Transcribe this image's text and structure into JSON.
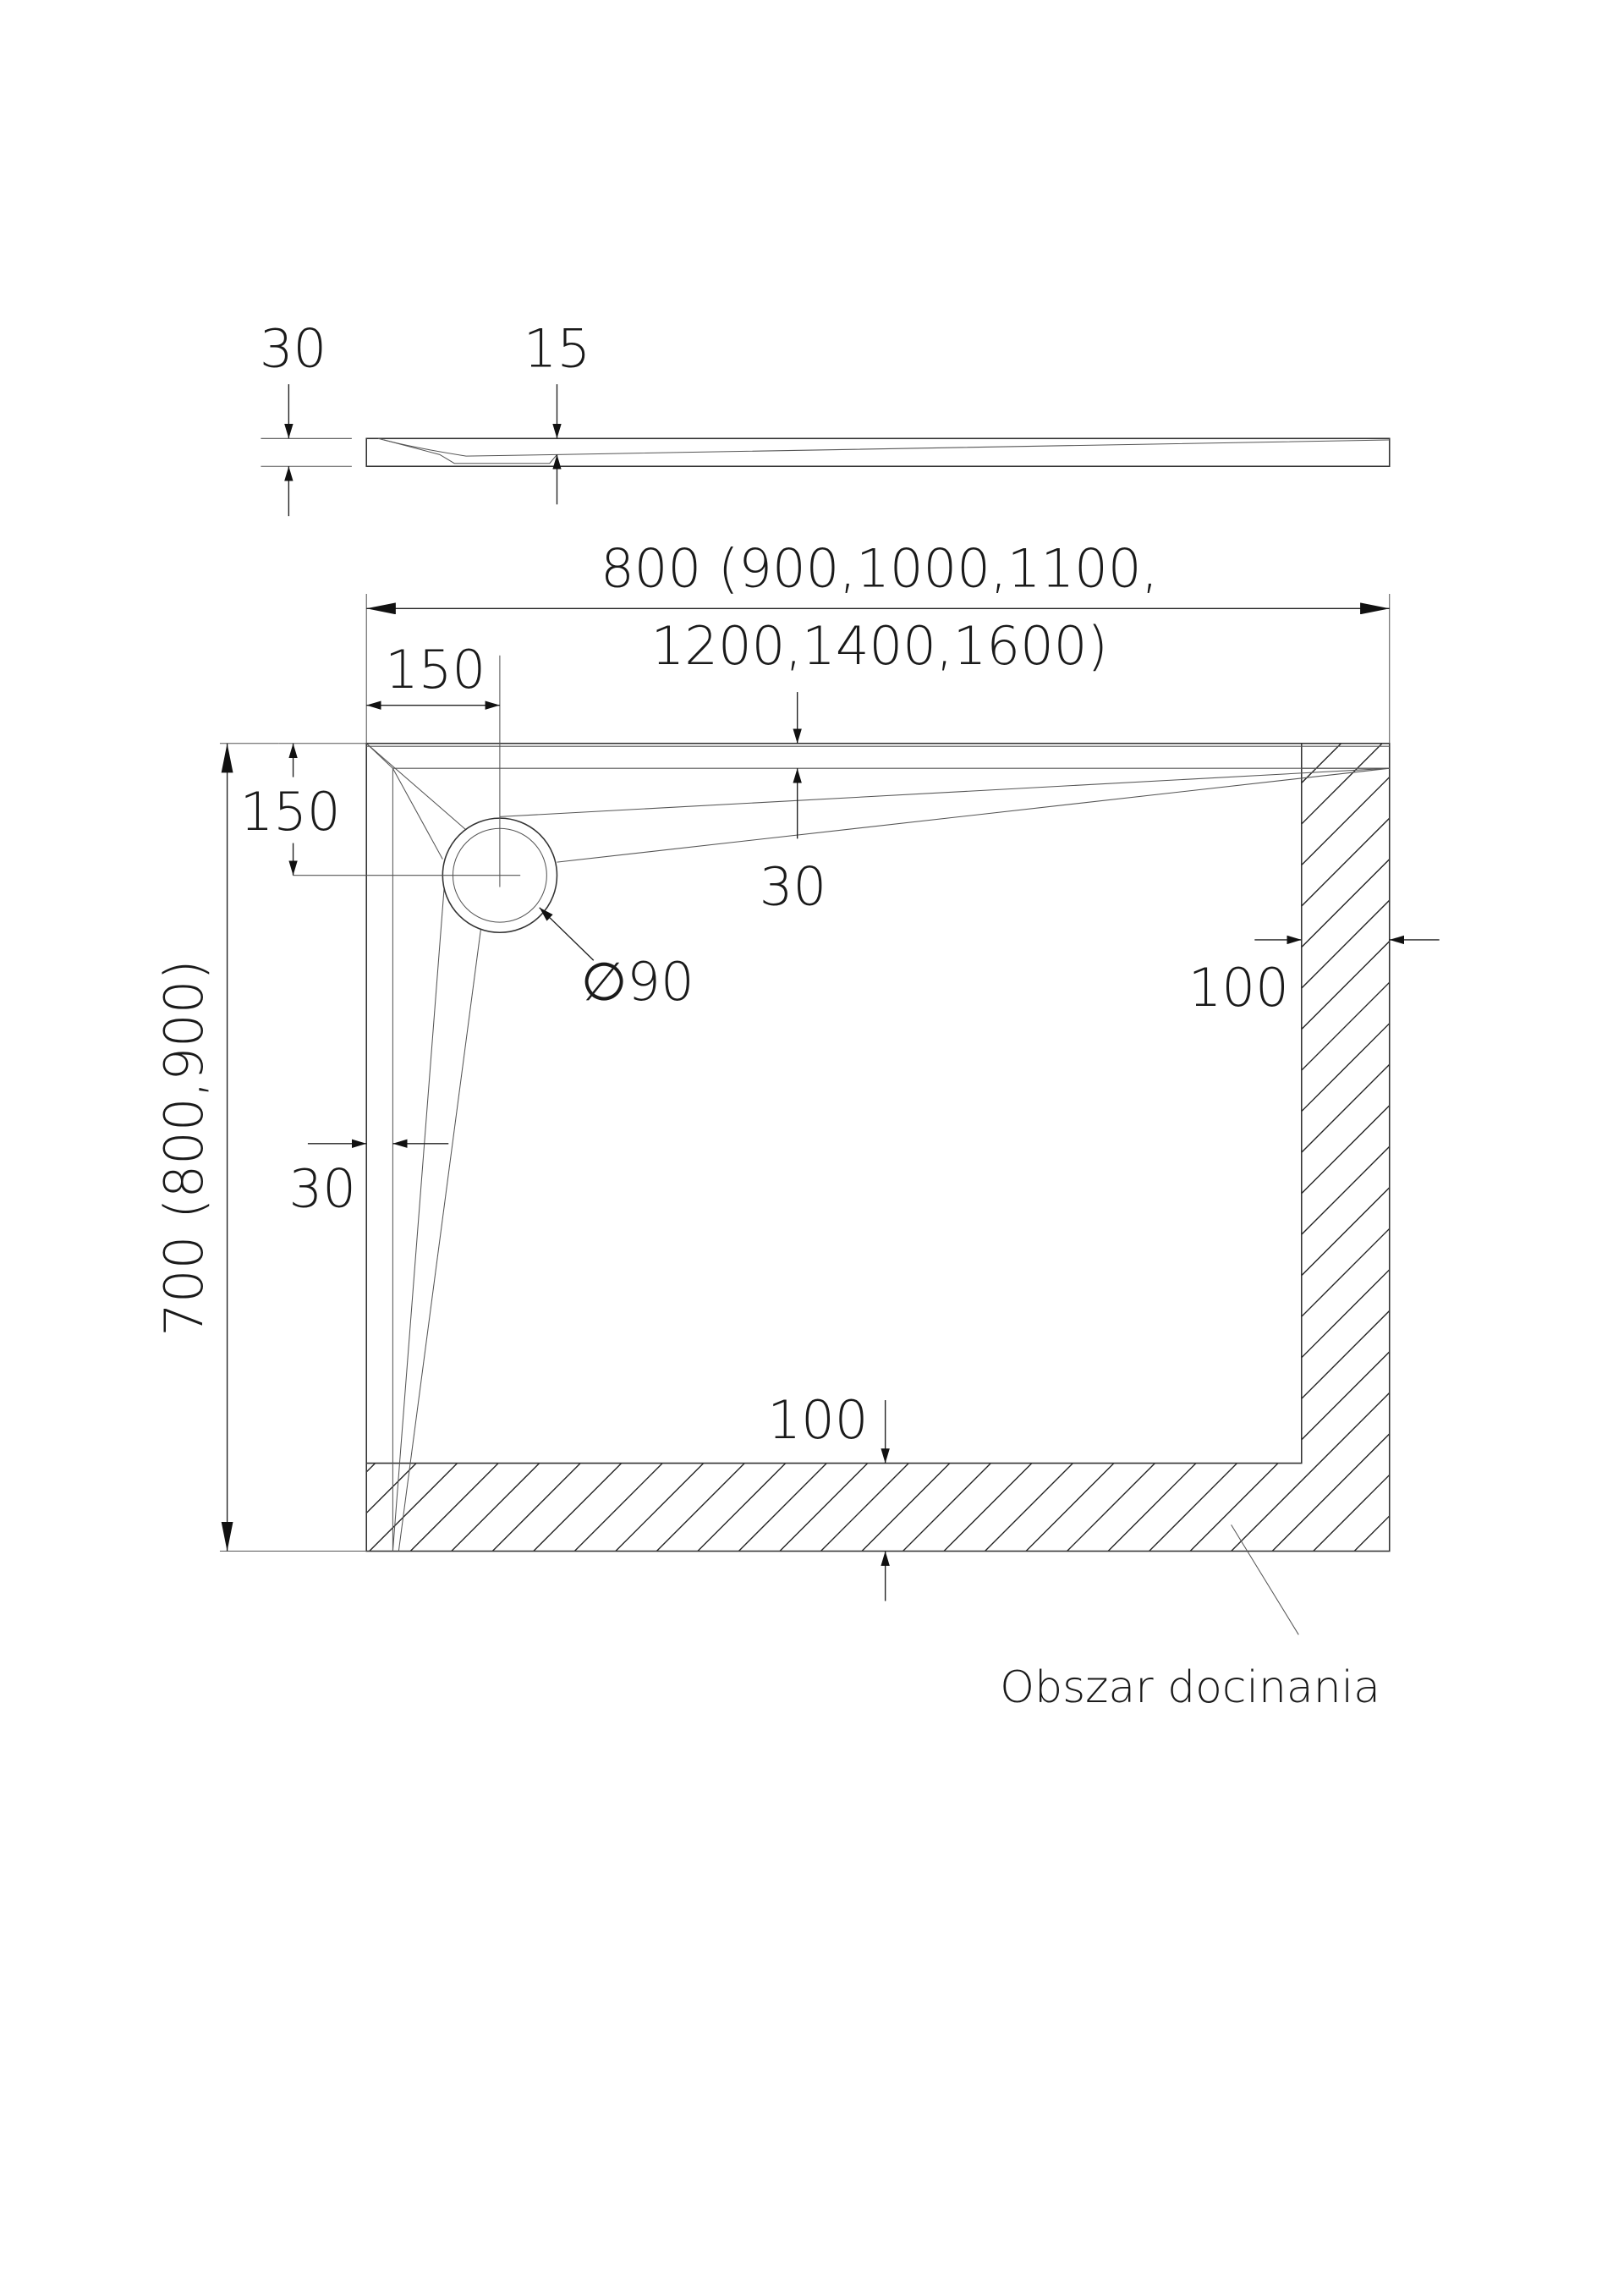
{
  "profile": {
    "thickness_label": "30",
    "drain_depth_label": "15"
  },
  "plan": {
    "width_label_line1": "800 (900,1000,1100,",
    "width_label_line2": "1200,1400,1600)",
    "length_label": "700 (800,900)",
    "drain_offset_x_label": "150",
    "drain_offset_y_label": "150",
    "top_slope_label": "30",
    "left_slope_label": "30",
    "drain_diameter_label": "∅90",
    "right_trim_label": "100",
    "bottom_trim_label": "100",
    "trim_area_label": "Obszar docinania"
  }
}
